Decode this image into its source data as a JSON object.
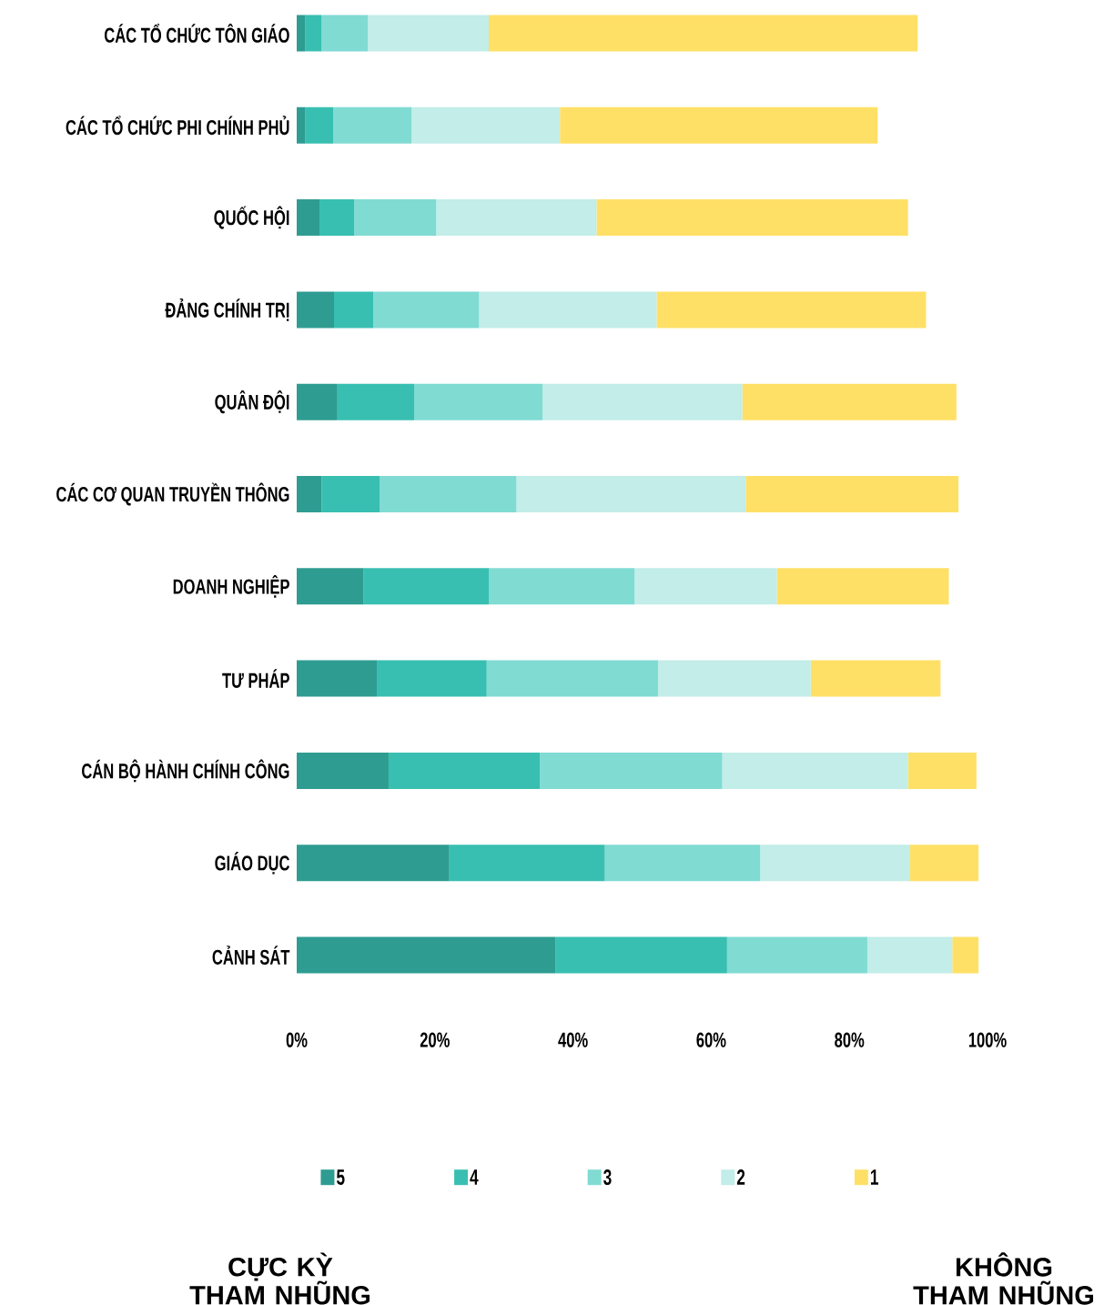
{
  "chart_data": {
    "type": "bar",
    "orientation": "horizontal",
    "stacked": true,
    "categories": [
      "CÁC TỔ CHỨC TÔN GIÁO",
      "CÁC TỔ CHỨC PHI CHÍNH PHỦ",
      "QUỐC HỘI",
      "ĐẢNG CHÍNH TRỊ",
      "QUÂN ĐỘI",
      "CÁC CƠ QUAN TRUYỀN THÔNG",
      "DOANH NGHIỆP",
      "TƯ PHÁP",
      "CÁN BỘ HÀNH CHÍNH CÔNG",
      "GIÁO DỤC",
      "CẢNH SÁT"
    ],
    "series": [
      {
        "name": "5",
        "color": "#2e9c91",
        "values": [
          1.2,
          1.2,
          3.3,
          5.4,
          5.9,
          3.6,
          9.7,
          11.6,
          13.3,
          22.1,
          37.5
        ]
      },
      {
        "name": "4",
        "color": "#38bfb1",
        "values": [
          2.4,
          4.1,
          5.0,
          5.7,
          11.1,
          8.4,
          18.1,
          15.9,
          21.9,
          22.5,
          24.8
        ]
      },
      {
        "name": "3",
        "color": "#80dbd3",
        "values": [
          6.7,
          11.3,
          11.9,
          15.3,
          18.6,
          19.8,
          21.1,
          24.8,
          26.4,
          22.5,
          20.3
        ]
      },
      {
        "name": "2",
        "color": "#c2ede8",
        "values": [
          17.5,
          21.5,
          23.2,
          25.7,
          28.9,
          33.2,
          20.6,
          22.1,
          26.9,
          21.7,
          12.3
        ]
      },
      {
        "name": "1",
        "color": "#ffe066",
        "values": [
          62.1,
          46.0,
          45.1,
          39.0,
          31.0,
          30.8,
          24.9,
          18.8,
          9.9,
          9.9,
          3.8
        ]
      }
    ],
    "xlim": [
      0,
      100
    ],
    "xticks": [
      {
        "value": 0,
        "label": "0%"
      },
      {
        "value": 20,
        "label": "20%"
      },
      {
        "value": 40,
        "label": "40%"
      },
      {
        "value": 60,
        "label": "60%"
      },
      {
        "value": 80,
        "label": "80%"
      },
      {
        "value": 100,
        "label": "100%"
      }
    ],
    "grid": false,
    "legend": "bottom",
    "annotations": [
      "CỰC KỲ THAM NHŨNG",
      "KHÔNG THAM NHŨNG"
    ]
  }
}
